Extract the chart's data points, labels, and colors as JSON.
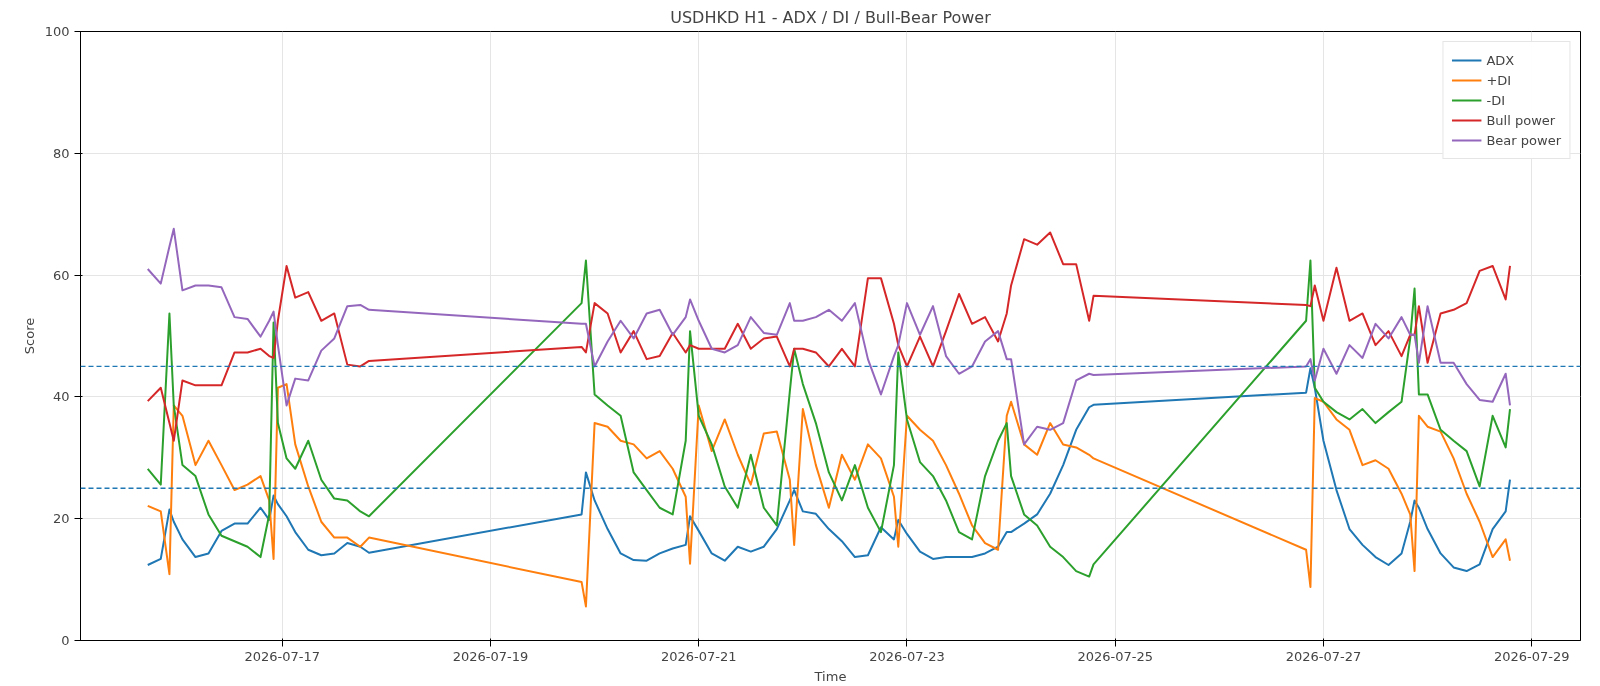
{
  "chart_data": {
    "type": "line",
    "title": "USDHKD H1 - ADX / DI / Bull-Bear Power",
    "xlabel": "Time",
    "ylabel": "Score",
    "x": [
      "2026-07-15T17:00",
      "2026-07-15T20:00",
      "2026-07-15T22:00",
      "2026-07-15T23:00",
      "2026-07-16T01:00",
      "2026-07-16T04:00",
      "2026-07-16T07:00",
      "2026-07-16T10:00",
      "2026-07-16T13:00",
      "2026-07-16T16:00",
      "2026-07-16T19:00",
      "2026-07-16T21:00",
      "2026-07-16T22:00",
      "2026-07-16T23:00",
      "2026-07-17T01:00",
      "2026-07-17T03:00",
      "2026-07-17T06:00",
      "2026-07-17T09:00",
      "2026-07-17T12:00",
      "2026-07-17T15:00",
      "2026-07-17T18:00",
      "2026-07-17T20:00",
      "2026-07-19T21:00",
      "2026-07-19T22:00",
      "2026-07-20T00:00",
      "2026-07-20T03:00",
      "2026-07-20T06:00",
      "2026-07-20T09:00",
      "2026-07-20T12:00",
      "2026-07-20T15:00",
      "2026-07-20T18:00",
      "2026-07-20T21:00",
      "2026-07-20T22:00",
      "2026-07-21T00:00",
      "2026-07-21T03:00",
      "2026-07-21T06:00",
      "2026-07-21T09:00",
      "2026-07-21T12:00",
      "2026-07-21T15:00",
      "2026-07-21T18:00",
      "2026-07-21T21:00",
      "2026-07-21T22:00",
      "2026-07-22T00:00",
      "2026-07-22T03:00",
      "2026-07-22T06:00",
      "2026-07-22T09:00",
      "2026-07-22T12:00",
      "2026-07-22T15:00",
      "2026-07-22T18:00",
      "2026-07-22T21:00",
      "2026-07-22T22:00",
      "2026-07-23T00:00",
      "2026-07-23T03:00",
      "2026-07-23T06:00",
      "2026-07-23T09:00",
      "2026-07-23T12:00",
      "2026-07-23T15:00",
      "2026-07-23T18:00",
      "2026-07-23T21:00",
      "2026-07-23T23:00",
      "2026-07-24T00:00",
      "2026-07-24T03:00",
      "2026-07-24T06:00",
      "2026-07-24T09:00",
      "2026-07-24T12:00",
      "2026-07-24T15:00",
      "2026-07-24T18:00",
      "2026-07-24T19:00",
      "2026-07-26T20:00",
      "2026-07-26T21:00",
      "2026-07-26T22:00",
      "2026-07-27T00:00",
      "2026-07-27T03:00",
      "2026-07-27T06:00",
      "2026-07-27T09:00",
      "2026-07-27T12:00",
      "2026-07-27T15:00",
      "2026-07-27T18:00",
      "2026-07-27T20:00",
      "2026-07-27T21:00",
      "2026-07-27T22:00",
      "2026-07-28T00:00",
      "2026-07-28T03:00",
      "2026-07-28T06:00",
      "2026-07-28T09:00",
      "2026-07-28T12:00",
      "2026-07-28T15:00",
      "2026-07-28T18:00",
      "2026-07-28T19:00"
    ],
    "series": [
      {
        "name": "ADX",
        "color": "#1f77b4",
        "values": [
          12.4,
          13.4,
          21.5,
          19.5,
          16.6,
          13.7,
          14.3,
          18,
          19.2,
          19.2,
          21.8,
          19.8,
          23.8,
          22.4,
          20.4,
          17.8,
          14.9,
          14,
          14.3,
          16,
          15.4,
          14.4,
          20.7,
          27.6,
          23,
          18.3,
          14.3,
          13.2,
          13.1,
          14.3,
          15.1,
          15.7,
          20.4,
          18,
          14.3,
          13.1,
          15.4,
          14.6,
          15.4,
          18.3,
          23,
          24.7,
          21.2,
          20.8,
          18.3,
          16.3,
          13.7,
          14,
          18.6,
          16.6,
          19.8,
          17.5,
          14.6,
          13.4,
          13.7,
          13.7,
          13.7,
          14.3,
          15.4,
          17.8,
          17.8,
          19.2,
          20.7,
          24.1,
          28.8,
          34.6,
          38.3,
          38.7,
          40.7,
          44.7,
          41.5,
          32.8,
          24.7,
          18.3,
          15.7,
          13.7,
          12.4,
          14.3,
          19.5,
          23,
          21.8,
          18.3,
          14.3,
          12,
          11.4,
          12.5,
          18.3,
          21.2,
          26.4
        ]
      },
      {
        "name": "+DI",
        "color": "#ff7f0e",
        "values": [
          22.1,
          21.2,
          10.9,
          38.6,
          36.9,
          28.8,
          32.8,
          28.8,
          24.7,
          25.6,
          27,
          23,
          13.4,
          41.5,
          42.1,
          32.2,
          25.3,
          19.5,
          16.9,
          16.9,
          15.4,
          16.9,
          9.6,
          5.6,
          35.7,
          35.1,
          32.8,
          32.2,
          29.9,
          31.1,
          28.2,
          23.6,
          12.6,
          38.6,
          31.1,
          36.3,
          30.5,
          25.6,
          34,
          34.3,
          26.4,
          15.7,
          38,
          28.8,
          21.8,
          30.5,
          26.4,
          32.2,
          29.9,
          23.6,
          15.4,
          36.9,
          34.6,
          32.8,
          28.8,
          24.1,
          18.9,
          16,
          14.9,
          36.9,
          39.2,
          32.2,
          30.5,
          35.7,
          32.2,
          31.7,
          30.5,
          29.9,
          14.9,
          8.8,
          39.8,
          39.2,
          36.3,
          34.6,
          28.8,
          29.6,
          28.2,
          24.1,
          20.7,
          11.4,
          36.9,
          35.1,
          34.3,
          29.9,
          24.1,
          19.5,
          13.7,
          16.6,
          13.1
        ]
      },
      {
        "name": "-DI",
        "color": "#2ca02c",
        "values": [
          28.2,
          25.6,
          53.7,
          38.6,
          28.8,
          27,
          20.7,
          17.2,
          16.3,
          15.4,
          13.7,
          20.7,
          52.2,
          35.7,
          29.9,
          28.2,
          32.8,
          26.4,
          23.3,
          23,
          21.2,
          20.4,
          55.4,
          62.4,
          40.4,
          38.6,
          36.9,
          27.6,
          24.7,
          21.8,
          20.7,
          32.8,
          50.8,
          36.9,
          32.2,
          25.3,
          21.8,
          30.5,
          21.8,
          18.9,
          40.9,
          47.9,
          42.1,
          35.7,
          27.6,
          23,
          28.8,
          21.8,
          17.8,
          28.8,
          47.3,
          36.3,
          29.3,
          27,
          23,
          17.8,
          16.6,
          27,
          32.8,
          35.7,
          27,
          20.7,
          18.9,
          15.4,
          13.7,
          11.4,
          10.5,
          12.5,
          52.5,
          62.4,
          41.5,
          39.2,
          37.5,
          36.3,
          38,
          35.7,
          37.5,
          39.2,
          49.6,
          57.8,
          40.4,
          40.4,
          34.6,
          32.8,
          31.1,
          25.3,
          36.9,
          31.7,
          38
        ]
      },
      {
        "name": "Bull power",
        "color": "#d62728",
        "values": [
          39.3,
          41.5,
          35.7,
          32.8,
          42.7,
          41.9,
          41.9,
          41.9,
          47.3,
          47.3,
          47.9,
          46.7,
          46.4,
          52.5,
          61.5,
          56.3,
          57.2,
          52.5,
          53.7,
          45.3,
          45,
          45.9,
          48.2,
          47.3,
          55.4,
          53.7,
          47.3,
          50.8,
          46.2,
          46.7,
          50.5,
          47.3,
          48.5,
          47.9,
          47.9,
          47.9,
          52,
          47.9,
          49.6,
          49.9,
          45,
          47.9,
          47.9,
          47.3,
          45,
          47.9,
          45,
          59.5,
          59.5,
          52,
          48.5,
          45,
          49.9,
          45,
          50.8,
          56.9,
          52,
          53.1,
          49.1,
          53.7,
          58.3,
          65.9,
          65,
          67,
          61.8,
          61.8,
          52.5,
          56.6,
          55.1,
          54.9,
          58.3,
          52.5,
          61.2,
          52.5,
          53.7,
          48.5,
          50.8,
          46.7,
          50.2,
          50.2,
          54.9,
          45.6,
          53.7,
          54.3,
          55.4,
          60.7,
          61.5,
          56,
          61.5
        ]
      },
      {
        "name": "Bear power",
        "color": "#9467bd",
        "values": [
          61,
          58.6,
          64.7,
          67.6,
          57.5,
          58.3,
          58.3,
          58,
          53.1,
          52.8,
          49.9,
          52.5,
          54,
          48.5,
          38.6,
          43,
          42.7,
          47.6,
          49.6,
          54.9,
          55.1,
          54.3,
          52,
          52,
          45,
          49.1,
          52.5,
          49.6,
          53.7,
          54.3,
          50.2,
          53.1,
          56,
          52.5,
          47.9,
          47.3,
          48.5,
          53.1,
          50.5,
          50.2,
          55.4,
          52.5,
          52.5,
          53.1,
          54.3,
          52.5,
          55.4,
          46.2,
          40.4,
          46.7,
          48.5,
          55.4,
          50.2,
          54.9,
          46.7,
          43.8,
          45,
          49.1,
          50.8,
          46.2,
          46.2,
          32.2,
          35.1,
          34.6,
          35.7,
          42.7,
          43.8,
          43.6,
          45,
          46.2,
          42.7,
          47.9,
          43.8,
          48.5,
          46.4,
          52,
          49.6,
          53.1,
          50.2,
          50.2,
          45.6,
          54.9,
          45.6,
          45.6,
          42.1,
          39.5,
          39.2,
          43.8,
          38.6
        ]
      }
    ],
    "xlim": [
      "2026-07-15T01:30",
      "2026-07-29T11:15"
    ],
    "xticks": [
      "2026-07-17",
      "2026-07-19",
      "2026-07-21",
      "2026-07-23",
      "2026-07-25",
      "2026-07-27",
      "2026-07-29"
    ],
    "ylim": [
      0,
      100
    ],
    "yticks": [
      0,
      20,
      40,
      60,
      80,
      100
    ],
    "ref_lines": [
      {
        "axis": "y",
        "value": 45,
        "color": "#1f77b4",
        "line_style": "dashed"
      },
      {
        "axis": "y",
        "value": 25,
        "color": "#1f77b4",
        "line_style": "dashed"
      }
    ],
    "grid": true,
    "legend": "top right",
    "line_style": "solid",
    "marker": "none"
  }
}
